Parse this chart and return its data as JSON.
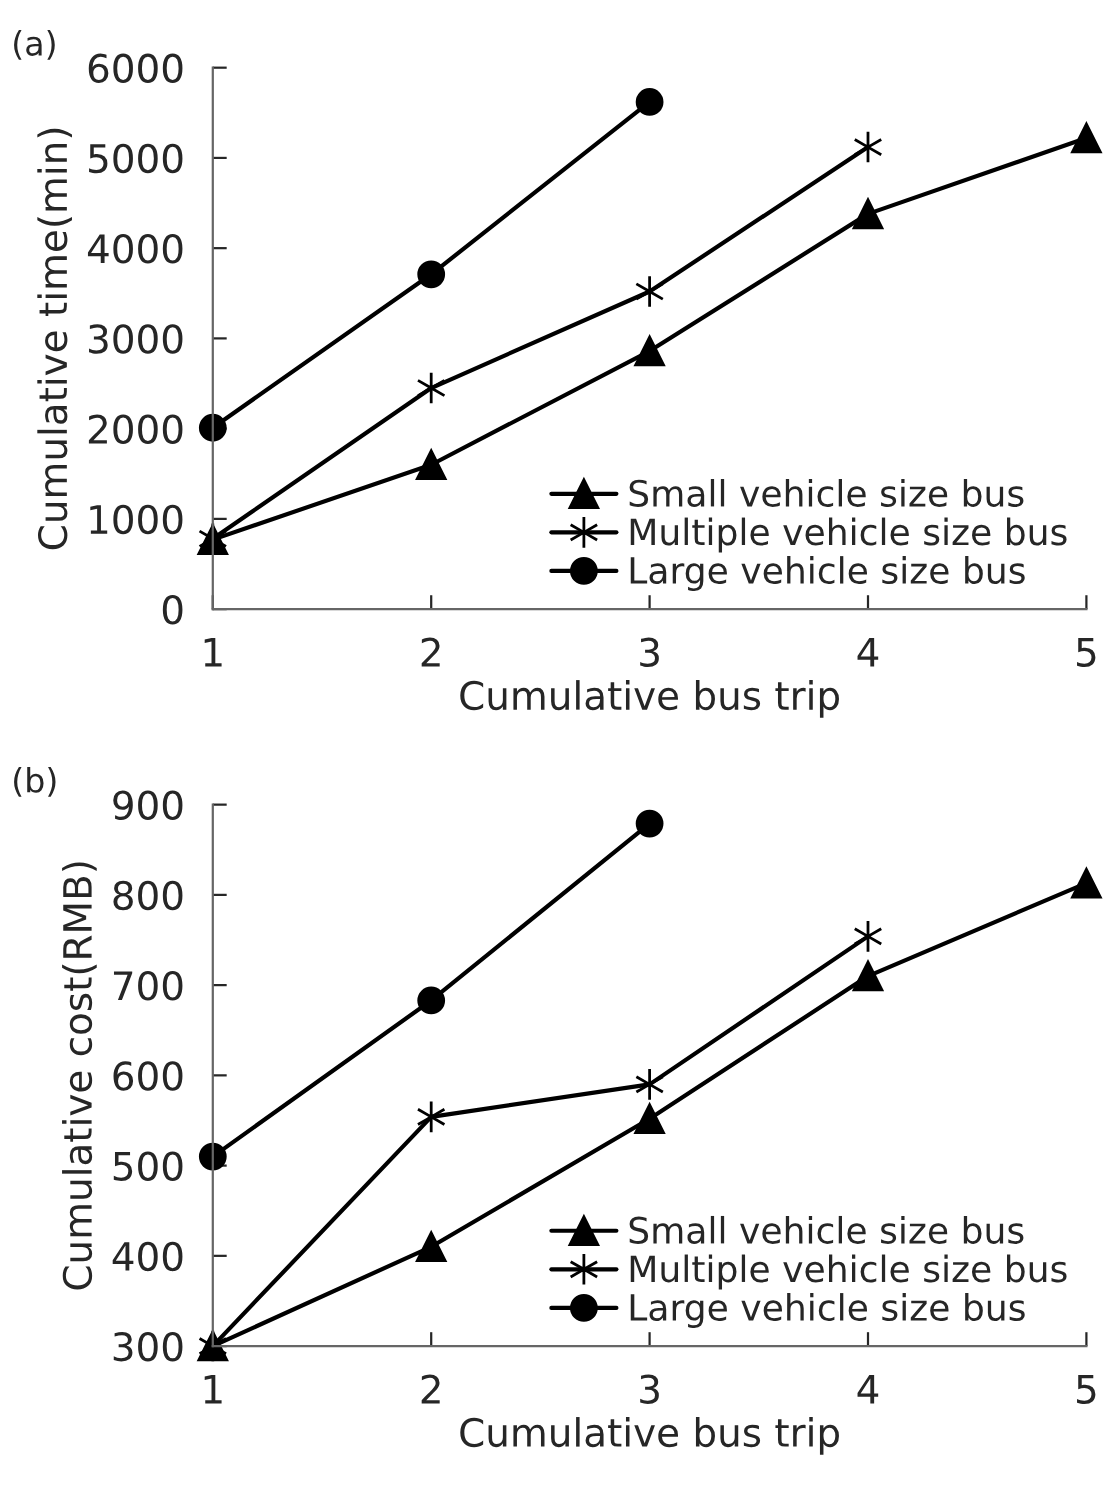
{
  "chart_data": [
    {
      "type": "line",
      "title": "(a)",
      "xlabel": "Cumulative bus trip",
      "ylabel": "Cumulative time(min)",
      "x": [
        1,
        2,
        3,
        4,
        5
      ],
      "xlim": [
        1,
        5
      ],
      "xticks": [
        1,
        2,
        3,
        4,
        5
      ],
      "ylim": [
        0,
        6000
      ],
      "yticks": [
        0,
        1000,
        2000,
        3000,
        4000,
        5000,
        6000
      ],
      "grid": false,
      "legend": "bottom right",
      "series": [
        {
          "name": "Small vehicle size bus",
          "color": "#000000",
          "marker": "triangle",
          "values": [
            770,
            1600,
            2860,
            4380,
            5220
          ]
        },
        {
          "name": "Multiple vehicle size bus",
          "color": "#000000",
          "marker": "cross",
          "values": [
            780,
            2450,
            3520,
            5120,
            null
          ]
        },
        {
          "name": "Large vehicle size bus",
          "color": "#000000",
          "marker": "circle",
          "values": [
            2010,
            3710,
            5620,
            null,
            null
          ]
        }
      ]
    },
    {
      "type": "line",
      "title": "(b)",
      "xlabel": "Cumulative bus trip",
      "ylabel": "Cumulative cost(RMB)",
      "x": [
        1,
        2,
        3,
        4,
        5
      ],
      "xlim": [
        1,
        5
      ],
      "xticks": [
        1,
        2,
        3,
        4,
        5
      ],
      "ylim": [
        300,
        900
      ],
      "yticks": [
        300,
        400,
        500,
        600,
        700,
        800,
        900
      ],
      "grid": false,
      "legend": "bottom right",
      "series": [
        {
          "name": "Small vehicle size bus",
          "color": "#000000",
          "marker": "triangle",
          "values": [
            300,
            410,
            552,
            710,
            813
          ]
        },
        {
          "name": "Multiple vehicle size bus",
          "color": "#000000",
          "marker": "cross",
          "values": [
            300,
            554,
            590,
            754,
            null
          ]
        },
        {
          "name": "Large vehicle size bus",
          "color": "#000000",
          "marker": "circle",
          "values": [
            510,
            683,
            879,
            null,
            null
          ]
        }
      ]
    }
  ]
}
